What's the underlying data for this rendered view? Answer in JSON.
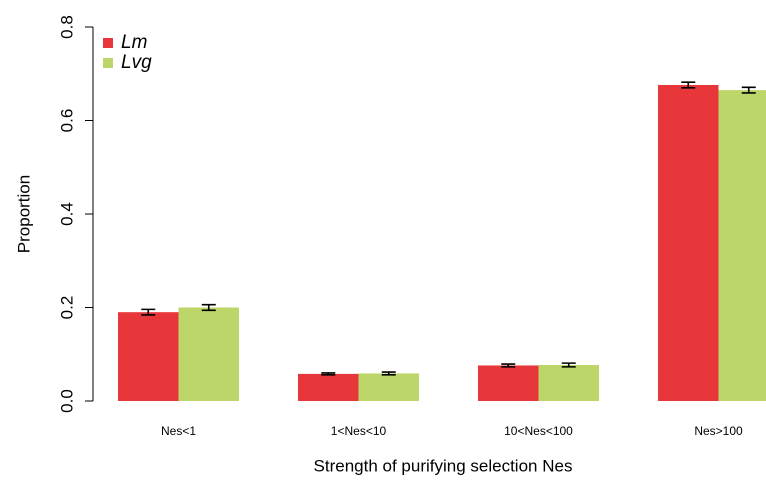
{
  "chart_data": {
    "type": "bar",
    "x_label": "Strength of purifying selection Nes",
    "y_label": "Proportion",
    "categories": [
      "Nes<1",
      "1<Nes<10",
      "10<Nes<100",
      "Nes>100"
    ],
    "series": [
      {
        "name": "Lm",
        "color": "#e8373a",
        "values": [
          0.19,
          0.058,
          0.076,
          0.676
        ],
        "errors": [
          0.006,
          0.002,
          0.003,
          0.006
        ]
      },
      {
        "name": "Lvg",
        "color": "#bdd66a",
        "values": [
          0.2,
          0.059,
          0.077,
          0.665
        ],
        "errors": [
          0.006,
          0.003,
          0.004,
          0.006
        ]
      }
    ],
    "ylim": [
      0,
      0.8
    ],
    "yticks": [
      {
        "value": 0,
        "label": "0.0"
      },
      0.2,
      0.4,
      0.6,
      0.8
    ],
    "legend": "top-left",
    "grid": false
  }
}
